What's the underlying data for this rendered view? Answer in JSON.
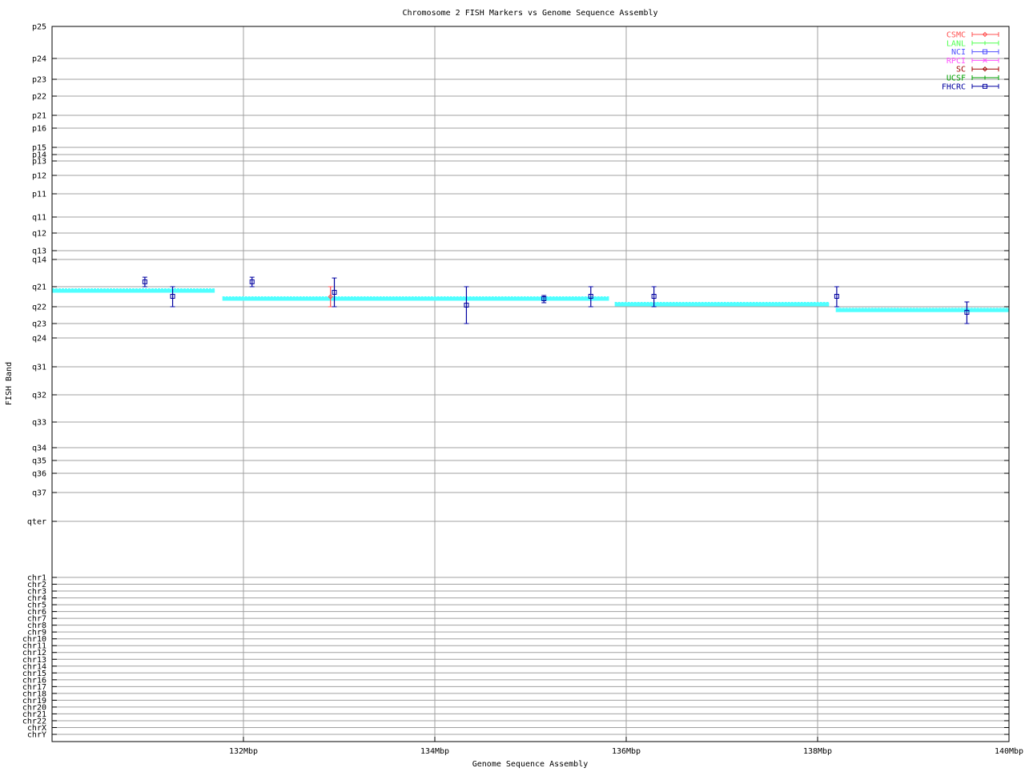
{
  "chart_data": {
    "type": "scatter",
    "title": "Chromosome 2 FISH Markers vs Genome Sequence Assembly",
    "xlabel": "Genome Sequence Assembly",
    "ylabel": "FISH Band",
    "xlim": [
      130,
      140
    ],
    "x_ticks": [
      132,
      134,
      136,
      138,
      140
    ],
    "x_tick_labels": [
      "132Mbp",
      "134Mbp",
      "136Mbp",
      "138Mbp",
      "140Mbp"
    ],
    "y_ticks": [
      "p25",
      "p24",
      "p23",
      "p22",
      "p21",
      "p16",
      "p15",
      "p14",
      "p13",
      "p12",
      "p11",
      "q11",
      "q12",
      "q13",
      "q14",
      "q21",
      "q22",
      "q23",
      "q24",
      "q31",
      "q32",
      "q33",
      "q34",
      "q35",
      "q36",
      "q37",
      "qter",
      "chr1",
      "chr2",
      "chr3",
      "chr4",
      "chr5",
      "chr6",
      "chr7",
      "chr8",
      "chr9",
      "chr10",
      "chr11",
      "chr12",
      "chr13",
      "chr14",
      "chr15",
      "chr16",
      "chr17",
      "chr18",
      "chr19",
      "chr20",
      "chr21",
      "chr22",
      "chrX",
      "chrY"
    ],
    "y_units": "fractional index into y_ticks (0 = p25)",
    "grid": true,
    "legend_position": "top-right",
    "legend": [
      {
        "name": "CSMC",
        "color": "#ff5050",
        "marker": "diamond"
      },
      {
        "name": "LANL",
        "color": "#50ff50",
        "marker": "plus"
      },
      {
        "name": "NCI",
        "color": "#5050ff",
        "marker": "square"
      },
      {
        "name": "RPCI",
        "color": "#ff50ff",
        "marker": "cross"
      },
      {
        "name": "SC",
        "color": "#a00000",
        "marker": "diamond"
      },
      {
        "name": "UCSF",
        "color": "#00a000",
        "marker": "plus"
      },
      {
        "name": "FHCRC",
        "color": "#0000a0",
        "marker": "square"
      }
    ],
    "series": [
      {
        "name": "CSMC",
        "points": [
          {
            "x": 132.91,
            "y": 15.5,
            "ylow": 15.0,
            "yhigh": 16.0
          }
        ]
      },
      {
        "name": "FHCRC",
        "points": [
          {
            "x": 130.97,
            "y": 14.82,
            "ylow": 14.65,
            "yhigh": 15.0
          },
          {
            "x": 131.26,
            "y": 15.48,
            "ylow": 15.0,
            "yhigh": 16.0
          },
          {
            "x": 132.09,
            "y": 14.82,
            "ylow": 14.65,
            "yhigh": 15.0
          },
          {
            "x": 132.95,
            "y": 15.28,
            "ylow": 14.68,
            "yhigh": 16.0
          },
          {
            "x": 134.33,
            "y": 15.92,
            "ylow": 15.0,
            "yhigh": 17.0
          },
          {
            "x": 135.14,
            "y": 15.6,
            "ylow": 15.44,
            "yhigh": 15.8
          },
          {
            "x": 135.63,
            "y": 15.48,
            "ylow": 15.0,
            "yhigh": 16.0
          },
          {
            "x": 136.29,
            "y": 15.48,
            "ylow": 15.0,
            "yhigh": 16.0
          },
          {
            "x": 138.2,
            "y": 15.48,
            "ylow": 15.0,
            "yhigh": 16.0
          },
          {
            "x": 139.56,
            "y": 16.33,
            "ylow": 15.76,
            "yhigh": 17.0
          }
        ]
      }
    ],
    "assembly_segments": {
      "color": "#50ffff",
      "segments": [
        {
          "x1": 130.0,
          "x2": 131.7,
          "y": 15.2
        },
        {
          "x1": 131.78,
          "x2": 135.82,
          "y": 15.6
        },
        {
          "x1": 135.88,
          "x2": 138.12,
          "y": 15.88
        },
        {
          "x1": 138.19,
          "x2": 140.0,
          "y": 16.2
        }
      ]
    }
  }
}
